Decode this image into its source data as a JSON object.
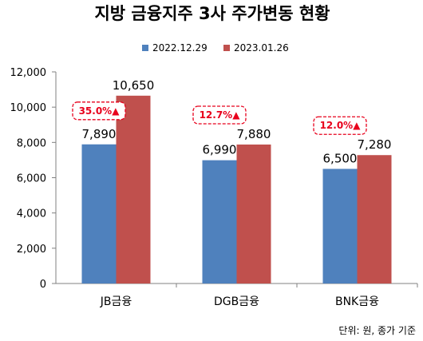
{
  "chart_data": {
    "type": "bar",
    "title": "지방 금융지주 3사 주가변동 현황",
    "categories": [
      "JB금융",
      "DGB금융",
      "BNK금융"
    ],
    "series": [
      {
        "name": "2022.12.29",
        "color": "#4f81bd",
        "values": [
          7890,
          6990,
          6500
        ],
        "labels": [
          "7,890",
          "6,990",
          "6,500"
        ]
      },
      {
        "name": "2023.01.26",
        "color": "#c0504d",
        "values": [
          10650,
          7880,
          7280
        ],
        "labels": [
          "10,650",
          "7,880",
          "7,280"
        ]
      }
    ],
    "annotations": [
      "35.0%▲",
      "12.7%▲",
      "12.0%▲"
    ],
    "annotation_color": "#e8001c",
    "ylim": [
      0,
      12000
    ],
    "yticks": [
      0,
      2000,
      4000,
      6000,
      8000,
      10000,
      12000
    ],
    "ytick_labels": [
      "0",
      "2,000",
      "4,000",
      "6,000",
      "8,000",
      "10,000",
      "12,000"
    ],
    "legend_position": "top",
    "grid": false,
    "xlabel": "",
    "ylabel": "",
    "note": "단위: 원, 종가 기준"
  }
}
